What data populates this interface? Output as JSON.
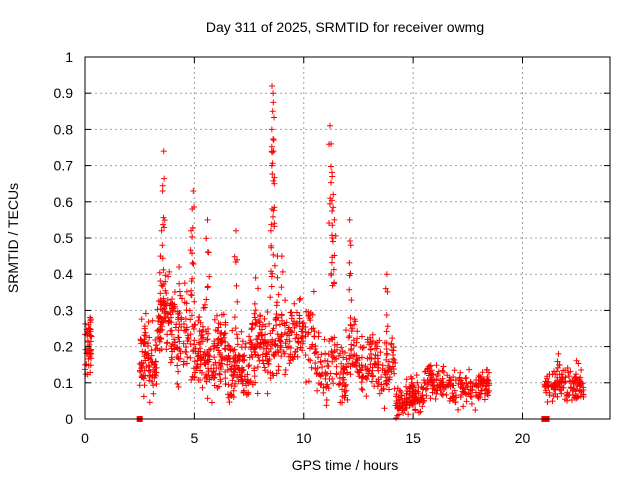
{
  "chart_data": {
    "type": "scatter",
    "title": "Day 311 of 2025, SRMTID for receiver owmg",
    "xlabel": "GPS time / hours",
    "ylabel": "SRMTID / TECUs",
    "xlim": [
      0,
      24
    ],
    "ylim": [
      0,
      1
    ],
    "grid": true,
    "marker": "+",
    "colors": {
      "points": "#ff0000",
      "grid": "#a0a0a0",
      "axis": "#000000"
    },
    "x_ticks": [
      {
        "value": 0,
        "label": "0"
      },
      {
        "value": 5,
        "label": "5"
      },
      {
        "value": 10,
        "label": "10"
      },
      {
        "value": 15,
        "label": "15"
      },
      {
        "value": 20,
        "label": "20"
      }
    ],
    "y_ticks": [
      {
        "value": 0,
        "label": "0"
      },
      {
        "value": 0.1,
        "label": "0.1"
      },
      {
        "value": 0.2,
        "label": "0.2"
      },
      {
        "value": 0.3,
        "label": "0.3"
      },
      {
        "value": 0.4,
        "label": "0.4"
      },
      {
        "value": 0.5,
        "label": "0.5"
      },
      {
        "value": 0.6,
        "label": "0.6"
      },
      {
        "value": 0.7,
        "label": "0.7"
      },
      {
        "value": 0.8,
        "label": "0.8"
      },
      {
        "value": 0.9,
        "label": "0.9"
      },
      {
        "value": 1,
        "label": "1"
      }
    ],
    "segments": [
      {
        "start": 0.0,
        "end": 0.3,
        "base": 0.18,
        "spread": 0.07,
        "density": 50
      },
      {
        "start": 2.5,
        "end": 3.3,
        "base": 0.17,
        "spread": 0.08,
        "density": 90
      },
      {
        "start": 3.3,
        "end": 4.2,
        "base": 0.25,
        "spread": 0.09,
        "density": 100
      },
      {
        "start": 4.2,
        "end": 5.5,
        "base": 0.22,
        "spread": 0.1,
        "density": 120
      },
      {
        "start": 5.5,
        "end": 6.5,
        "base": 0.18,
        "spread": 0.08,
        "density": 100
      },
      {
        "start": 6.5,
        "end": 7.5,
        "base": 0.12,
        "spread": 0.07,
        "density": 100
      },
      {
        "start": 7.5,
        "end": 8.5,
        "base": 0.22,
        "spread": 0.09,
        "density": 100
      },
      {
        "start": 8.5,
        "end": 10.5,
        "base": 0.22,
        "spread": 0.08,
        "density": 140
      },
      {
        "start": 10.5,
        "end": 12.5,
        "base": 0.16,
        "spread": 0.08,
        "density": 140
      },
      {
        "start": 12.5,
        "end": 14.2,
        "base": 0.15,
        "spread": 0.07,
        "density": 120
      },
      {
        "start": 14.2,
        "end": 15.5,
        "base": 0.06,
        "spread": 0.04,
        "density": 120
      },
      {
        "start": 15.5,
        "end": 18.5,
        "base": 0.09,
        "spread": 0.04,
        "density": 200
      },
      {
        "start": 21.0,
        "end": 22.8,
        "base": 0.09,
        "spread": 0.04,
        "density": 140
      }
    ],
    "peaks": [
      {
        "x": 3.6,
        "y": 0.74
      },
      {
        "x": 3.55,
        "y": 0.63
      },
      {
        "x": 3.5,
        "y": 0.52
      },
      {
        "x": 3.45,
        "y": 0.45
      },
      {
        "x": 4.95,
        "y": 0.63
      },
      {
        "x": 4.9,
        "y": 0.58
      },
      {
        "x": 4.85,
        "y": 0.52
      },
      {
        "x": 5.6,
        "y": 0.55
      },
      {
        "x": 5.65,
        "y": 0.46
      },
      {
        "x": 6.9,
        "y": 0.52
      },
      {
        "x": 6.95,
        "y": 0.44
      },
      {
        "x": 8.55,
        "y": 0.92
      },
      {
        "x": 8.6,
        "y": 0.9
      },
      {
        "x": 8.58,
        "y": 0.85
      },
      {
        "x": 8.62,
        "y": 0.74
      },
      {
        "x": 8.65,
        "y": 0.65
      },
      {
        "x": 8.55,
        "y": 0.58
      },
      {
        "x": 8.5,
        "y": 0.52
      },
      {
        "x": 8.8,
        "y": 0.45
      },
      {
        "x": 11.2,
        "y": 0.81
      },
      {
        "x": 11.25,
        "y": 0.76
      },
      {
        "x": 11.3,
        "y": 0.67
      },
      {
        "x": 11.35,
        "y": 0.62
      },
      {
        "x": 11.4,
        "y": 0.55
      },
      {
        "x": 11.3,
        "y": 0.5
      },
      {
        "x": 12.1,
        "y": 0.55
      },
      {
        "x": 12.15,
        "y": 0.48
      },
      {
        "x": 13.8,
        "y": 0.4
      },
      {
        "x": 13.75,
        "y": 0.36
      },
      {
        "x": 7.8,
        "y": 0.39
      },
      {
        "x": 4.3,
        "y": 0.42
      },
      {
        "x": 9.0,
        "y": 0.45
      }
    ],
    "gap_markers": [
      2.5,
      21.0,
      21.1
    ]
  }
}
